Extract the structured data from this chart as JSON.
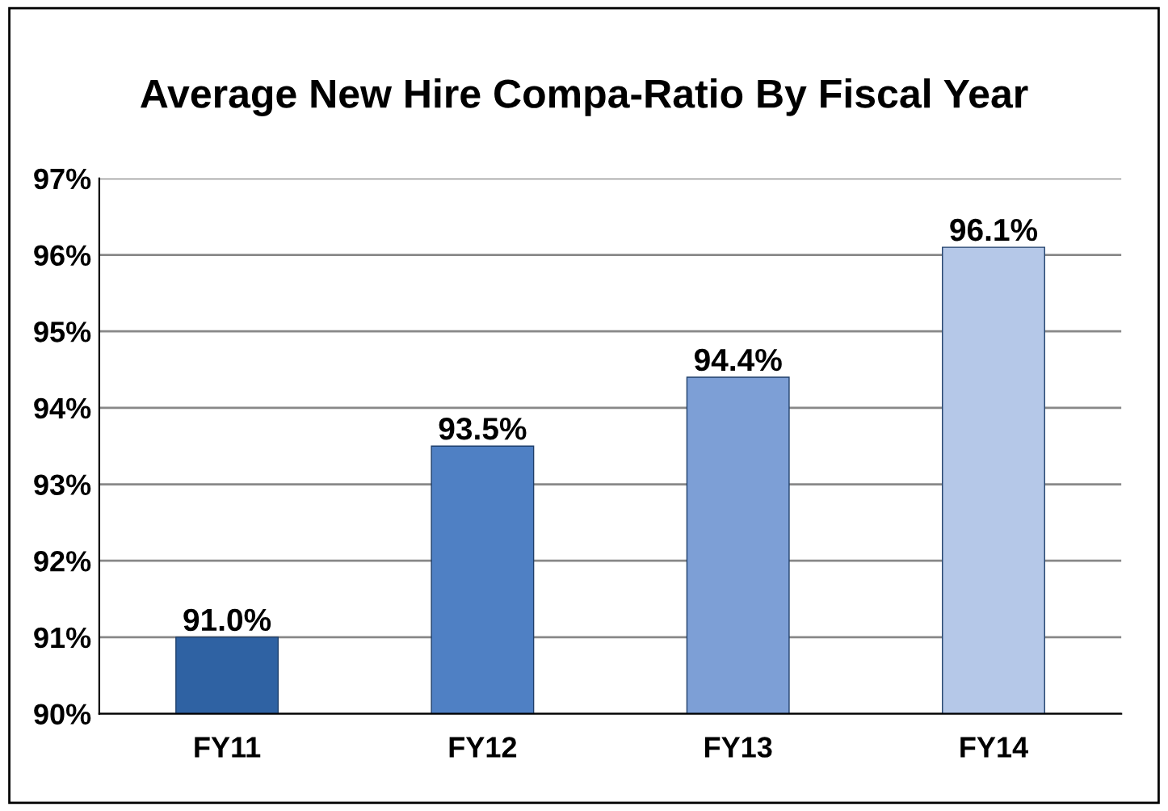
{
  "chart_data": {
    "type": "bar",
    "title": "Average New Hire Compa-Ratio By Fiscal Year",
    "categories": [
      "FY11",
      "FY12",
      "FY13",
      "FY14"
    ],
    "values": [
      91.0,
      93.5,
      94.4,
      96.1
    ],
    "colors": [
      "#2f62a3",
      "#4f80c4",
      "#7d9fd6",
      "#b5c8e8"
    ],
    "value_labels": [
      "91.0%",
      "93.5%",
      "94.4%",
      "96.1%"
    ],
    "ylim": [
      90,
      97
    ],
    "yticks": [
      {
        "value": 90,
        "label": "90%"
      },
      {
        "value": 91,
        "label": "91%"
      },
      {
        "value": 92,
        "label": "92%"
      },
      {
        "value": 93,
        "label": "93%"
      },
      {
        "value": 94,
        "label": "94%"
      },
      {
        "value": 95,
        "label": "95%"
      },
      {
        "value": 96,
        "label": "96%"
      },
      {
        "value": 97,
        "label": "97%"
      }
    ],
    "grid": "y",
    "legend": false
  }
}
